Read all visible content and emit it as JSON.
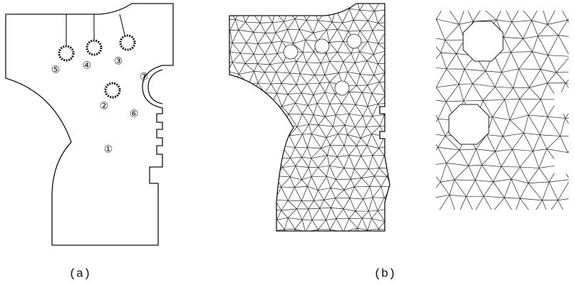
{
  "figure": {
    "panel_a": {
      "caption": "(a)",
      "region_labels": [
        "⑤",
        "④",
        "③",
        "⑦",
        "②",
        "⑥",
        "①"
      ]
    },
    "panel_b": {
      "caption": "(b)"
    }
  }
}
